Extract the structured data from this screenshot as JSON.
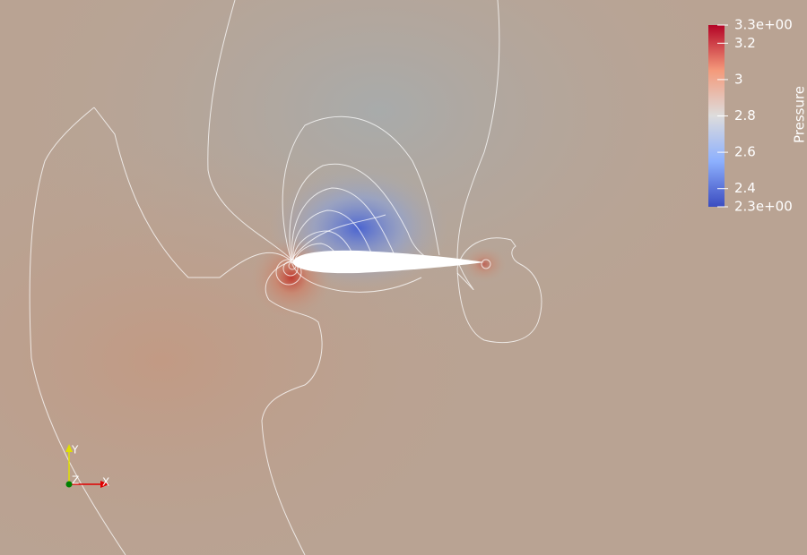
{
  "colorbar": {
    "title": "Pressure",
    "max": {
      "value": 3.3,
      "label": "3.3e+00"
    },
    "min": {
      "value": 2.3,
      "label": "2.3e+00"
    },
    "ticks": [
      3.2,
      3,
      2.8,
      2.6,
      2.4
    ]
  },
  "axes_triad": {
    "x": "X",
    "y": "Y",
    "z": "Z"
  }
}
